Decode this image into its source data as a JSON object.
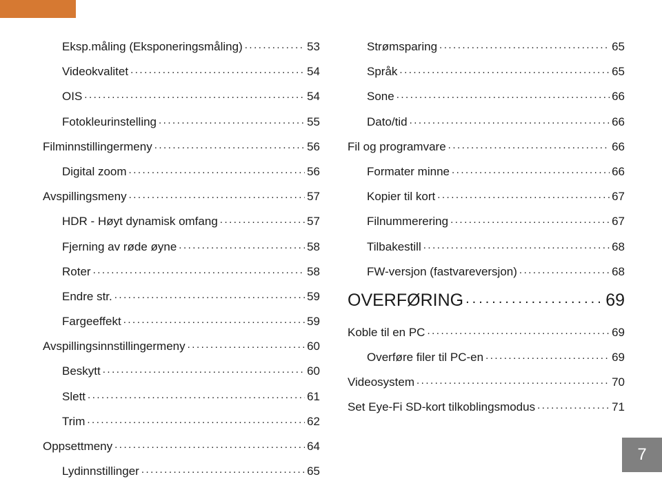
{
  "page_number": "7",
  "colors": {
    "header_bar": "#d67932",
    "text": "#1a1a1a",
    "page_box_bg": "#808080",
    "page_box_text": "#ffffff",
    "background": "#ffffff"
  },
  "left_column": [
    {
      "label": "Eksp.måling (Eksponeringsmåling)",
      "page": "53",
      "indent": 1
    },
    {
      "label": "Videokvalitet",
      "page": "54",
      "indent": 1
    },
    {
      "label": "OIS",
      "page": "54",
      "indent": 1
    },
    {
      "label": "Fotokleurinstelling",
      "page": "55",
      "indent": 1
    },
    {
      "label": "Filminnstillingermeny",
      "page": "56",
      "indent": 0
    },
    {
      "label": "Digital zoom",
      "page": "56",
      "indent": 1
    },
    {
      "label": "Avspillingsmeny",
      "page": "57",
      "indent": 0
    },
    {
      "label": "HDR - Høyt dynamisk omfang",
      "page": "57",
      "indent": 1
    },
    {
      "label": "Fjerning av røde øyne",
      "page": "58",
      "indent": 1
    },
    {
      "label": "Roter",
      "page": "58",
      "indent": 1
    },
    {
      "label": "Endre str. ",
      "page": "59",
      "indent": 1
    },
    {
      "label": "Fargeeffekt",
      "page": "59",
      "indent": 1
    },
    {
      "label": "Avspillingsinnstillingermeny",
      "page": "60",
      "indent": 0
    },
    {
      "label": "Beskytt",
      "page": "60",
      "indent": 1
    },
    {
      "label": "Slett",
      "page": "61",
      "indent": 1
    },
    {
      "label": "Trim",
      "page": "62",
      "indent": 1
    },
    {
      "label": "Oppsettmeny",
      "page": "64",
      "indent": 0
    },
    {
      "label": "Lydinnstillinger",
      "page": "65",
      "indent": 1
    }
  ],
  "right_column": [
    {
      "label": "Strømsparing",
      "page": "65",
      "indent": 1
    },
    {
      "label": "Språk",
      "page": "65",
      "indent": 1
    },
    {
      "label": "Sone",
      "page": "66",
      "indent": 1
    },
    {
      "label": "Dato/tid",
      "page": "66",
      "indent": 1
    },
    {
      "label": "Fil og programvare",
      "page": "66",
      "indent": 0
    },
    {
      "label": "Formater minne",
      "page": "66",
      "indent": 1
    },
    {
      "label": "Kopier til kort",
      "page": "67",
      "indent": 1
    },
    {
      "label": "Filnummerering",
      "page": "67",
      "indent": 1
    },
    {
      "label": "Tilbakestill",
      "page": "68",
      "indent": 1
    },
    {
      "label": "FW-versjon (fastvareversjon)",
      "page": "68",
      "indent": 1
    },
    {
      "label": "OVERFØRING",
      "page": "69",
      "indent": 0,
      "section": true
    },
    {
      "label": "Koble til en PC",
      "page": "69",
      "indent": 0
    },
    {
      "label": "Overføre filer til PC-en",
      "page": "69",
      "indent": 1
    },
    {
      "label": "Videosystem",
      "page": "70",
      "indent": 0
    },
    {
      "label": "Set Eye-Fi SD-kort tilkoblingsmodus",
      "page": "71",
      "indent": 0
    }
  ]
}
